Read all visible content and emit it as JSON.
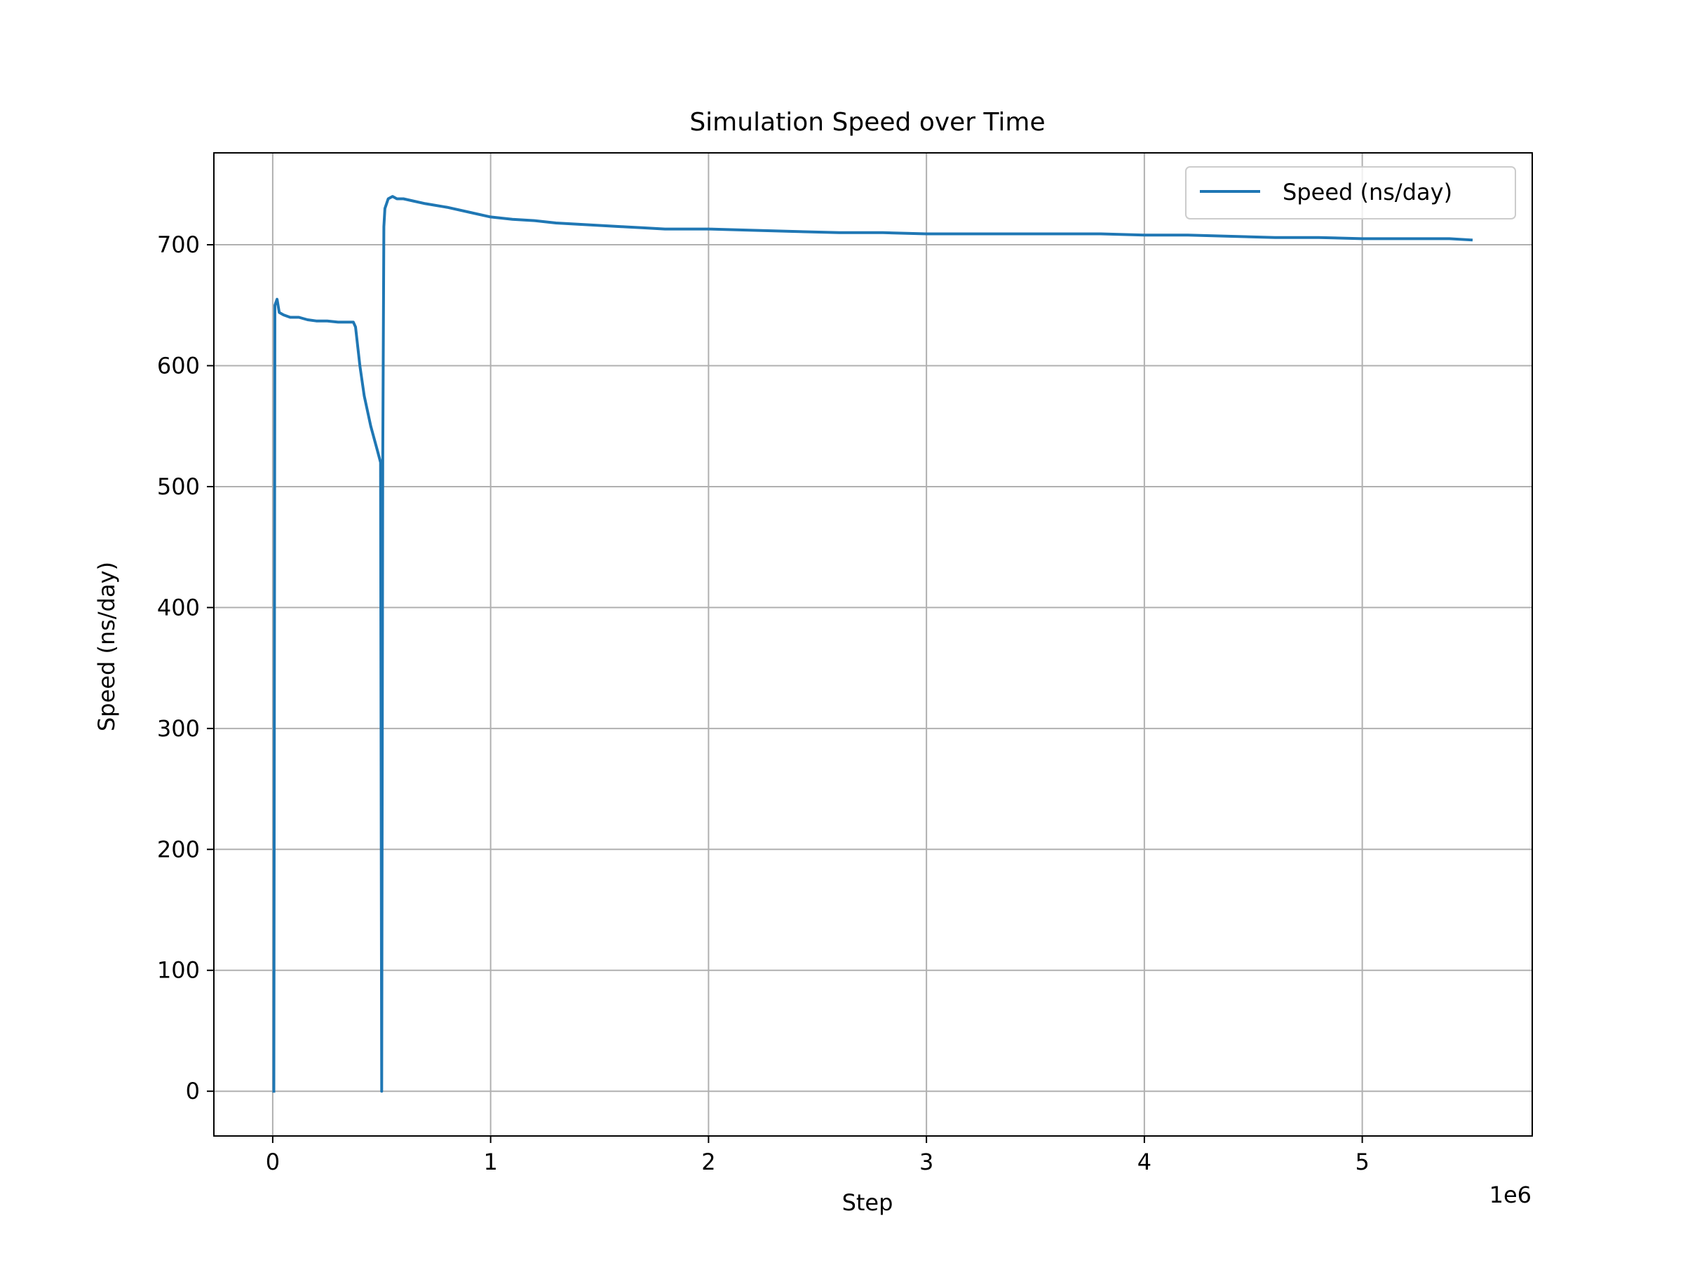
{
  "chart_data": {
    "type": "line",
    "title": "Simulation Speed over Time",
    "xlabel": "Step",
    "ylabel": "Speed (ns/day)",
    "x_offset_label": "1e6",
    "xlim": [
      -0.27,
      5.78
    ],
    "ylim": [
      -37,
      776
    ],
    "xticks": [
      0,
      1,
      2,
      3,
      4,
      5
    ],
    "xtick_labels": [
      "0",
      "1",
      "2",
      "3",
      "4",
      "5"
    ],
    "yticks": [
      0,
      100,
      200,
      300,
      400,
      500,
      600,
      700
    ],
    "ytick_labels": [
      "0",
      "100",
      "200",
      "300",
      "400",
      "500",
      "600",
      "700"
    ],
    "grid": true,
    "legend_position": "top-right",
    "series": [
      {
        "name": "Speed (ns/day)",
        "color": "#1f77b4",
        "x": [
          0.005,
          0.01,
          0.02,
          0.03,
          0.05,
          0.08,
          0.12,
          0.16,
          0.2,
          0.25,
          0.3,
          0.35,
          0.37,
          0.38,
          0.4,
          0.42,
          0.45,
          0.48,
          0.495,
          0.5,
          0.505,
          0.51,
          0.515,
          0.53,
          0.55,
          0.57,
          0.6,
          0.65,
          0.7,
          0.8,
          0.9,
          1.0,
          1.1,
          1.2,
          1.3,
          1.4,
          1.5,
          1.6,
          1.7,
          1.8,
          2.0,
          2.2,
          2.4,
          2.6,
          2.8,
          3.0,
          3.2,
          3.4,
          3.6,
          3.8,
          4.0,
          4.2,
          4.4,
          4.6,
          4.8,
          5.0,
          5.2,
          5.4,
          5.5
        ],
        "y": [
          0,
          650,
          655,
          644,
          642,
          640,
          640,
          638,
          637,
          637,
          636,
          636,
          636,
          632,
          600,
          575,
          550,
          530,
          520,
          0,
          520,
          715,
          730,
          738,
          740,
          738,
          738,
          736,
          734,
          731,
          727,
          723,
          721,
          720,
          718,
          717,
          716,
          715,
          714,
          713,
          713,
          712,
          711,
          710,
          710,
          709,
          709,
          709,
          709,
          709,
          708,
          708,
          707,
          706,
          706,
          705,
          705,
          705,
          704
        ]
      }
    ]
  }
}
